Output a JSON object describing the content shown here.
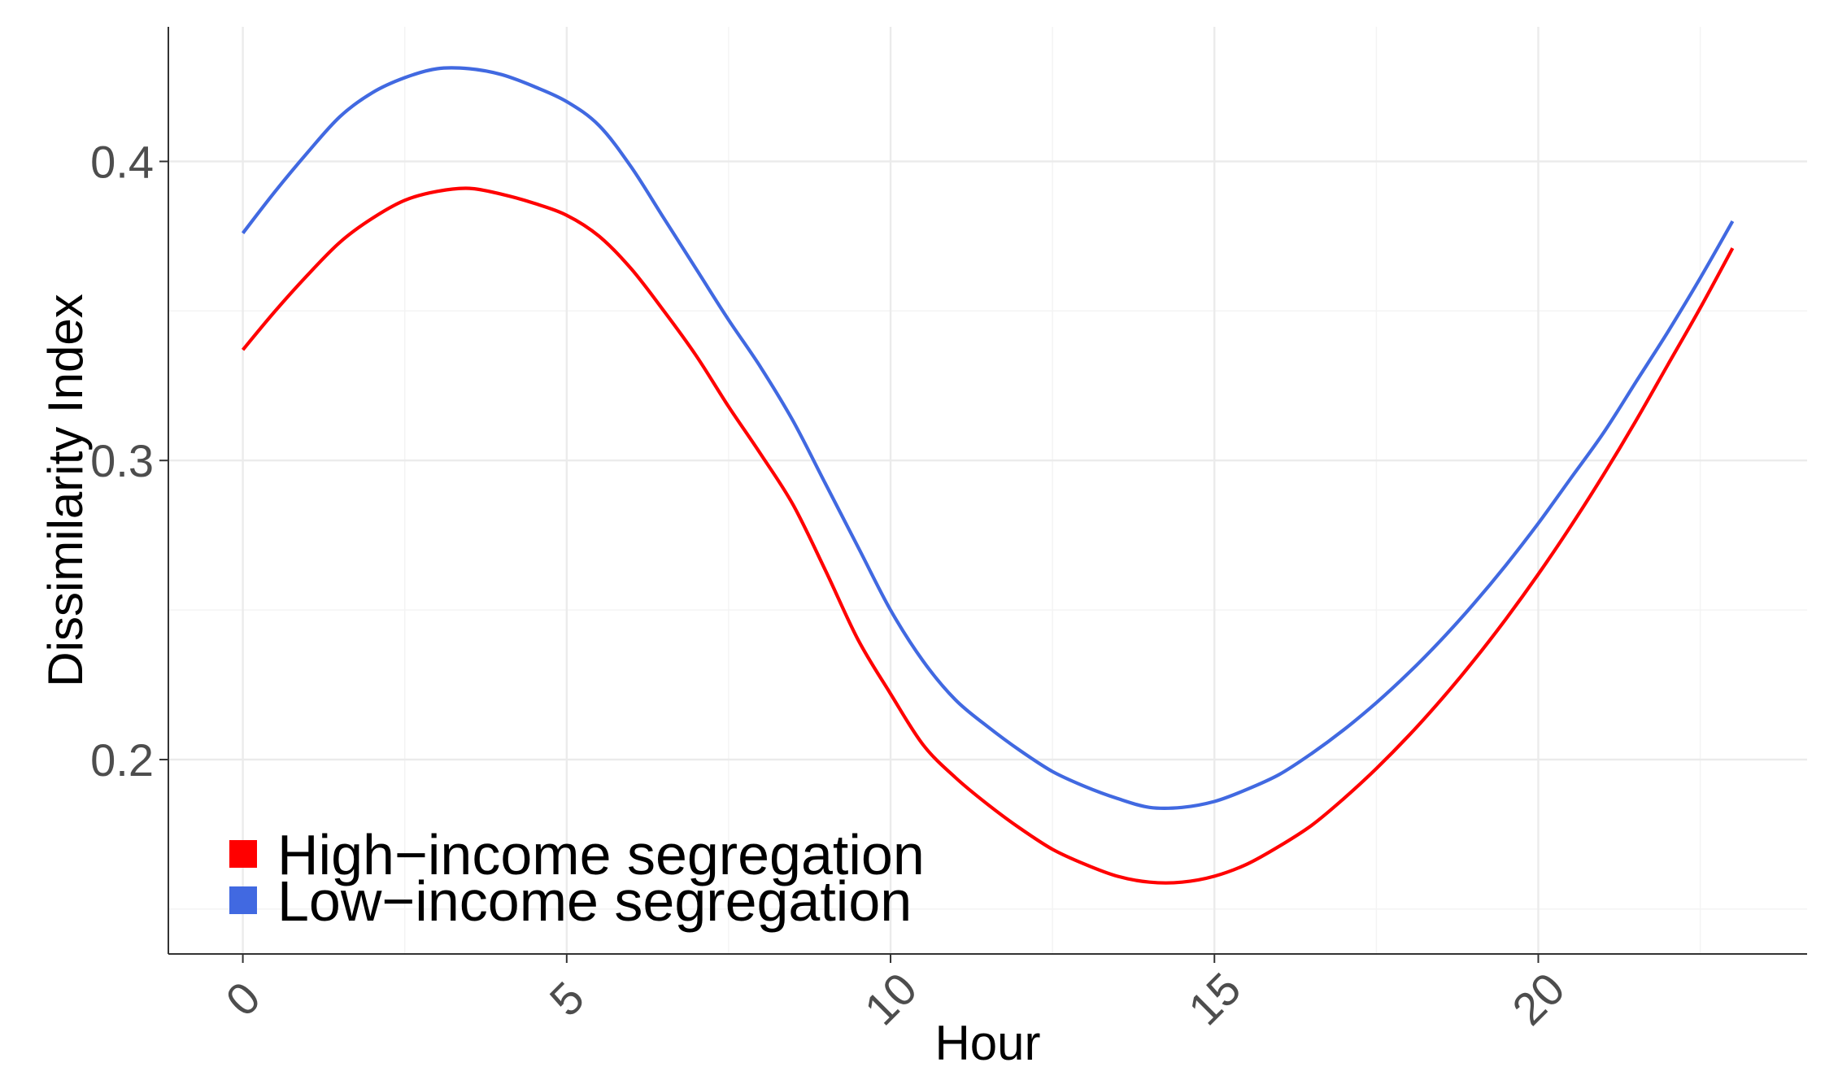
{
  "chart_data": {
    "type": "line",
    "xlabel": "Hour",
    "ylabel": "Dissimilarity Index",
    "xlim": [
      -1.15,
      24.15
    ],
    "ylim": [
      0.135,
      0.445
    ],
    "x_ticks": [
      0,
      5,
      10,
      15,
      20
    ],
    "x_tick_labels": [
      "0",
      "5",
      "10",
      "15",
      "20"
    ],
    "x_minor_ticks": [
      2.5,
      7.5,
      12.5,
      17.5,
      22.5
    ],
    "y_ticks": [
      0.2,
      0.3,
      0.4
    ],
    "y_tick_labels": [
      "0.2",
      "0.3",
      "0.4"
    ],
    "y_minor_ticks": [
      0.15,
      0.25,
      0.35
    ],
    "grid": true,
    "legend_position": "bottom-left",
    "series": [
      {
        "name": "High−income segregation",
        "color": "#ff0000",
        "x": [
          0,
          0.5,
          1,
          1.5,
          2,
          2.5,
          3,
          3.5,
          4,
          4.5,
          5,
          5.5,
          6,
          6.5,
          7,
          7.5,
          8,
          8.5,
          9,
          9.5,
          10,
          10.5,
          11,
          11.5,
          12,
          12.5,
          13,
          13.5,
          14,
          14.5,
          15,
          15.5,
          16,
          16.5,
          17,
          17.5,
          18,
          18.5,
          19,
          19.5,
          20,
          20.5,
          21,
          21.5,
          22,
          22.5,
          23
        ],
        "values": [
          0.337,
          0.35,
          0.362,
          0.373,
          0.381,
          0.387,
          0.39,
          0.391,
          0.389,
          0.386,
          0.382,
          0.375,
          0.364,
          0.35,
          0.335,
          0.318,
          0.302,
          0.285,
          0.263,
          0.24,
          0.222,
          0.205,
          0.194,
          0.185,
          0.177,
          0.17,
          0.165,
          0.161,
          0.159,
          0.159,
          0.161,
          0.165,
          0.171,
          0.178,
          0.187,
          0.197,
          0.208,
          0.22,
          0.233,
          0.247,
          0.262,
          0.278,
          0.295,
          0.313,
          0.332,
          0.351,
          0.371
        ]
      },
      {
        "name": "Low−income segregation",
        "color": "#4169e1",
        "x": [
          0,
          0.5,
          1,
          1.5,
          2,
          2.5,
          3,
          3.5,
          4,
          4.5,
          5,
          5.5,
          6,
          6.5,
          7,
          7.5,
          8,
          8.5,
          9,
          9.5,
          10,
          10.5,
          11,
          11.5,
          12,
          12.5,
          13,
          13.5,
          14,
          14.5,
          15,
          15.5,
          16,
          16.5,
          17,
          17.5,
          18,
          18.5,
          19,
          19.5,
          20,
          20.5,
          21,
          21.5,
          22,
          22.5,
          23
        ],
        "values": [
          0.376,
          0.39,
          0.403,
          0.415,
          0.423,
          0.428,
          0.431,
          0.431,
          0.429,
          0.425,
          0.42,
          0.412,
          0.398,
          0.381,
          0.364,
          0.347,
          0.331,
          0.313,
          0.292,
          0.271,
          0.25,
          0.233,
          0.22,
          0.211,
          0.203,
          0.196,
          0.191,
          0.187,
          0.184,
          0.184,
          0.186,
          0.19,
          0.195,
          0.202,
          0.21,
          0.219,
          0.229,
          0.24,
          0.252,
          0.265,
          0.279,
          0.294,
          0.309,
          0.326,
          0.343,
          0.361,
          0.38
        ]
      }
    ]
  }
}
